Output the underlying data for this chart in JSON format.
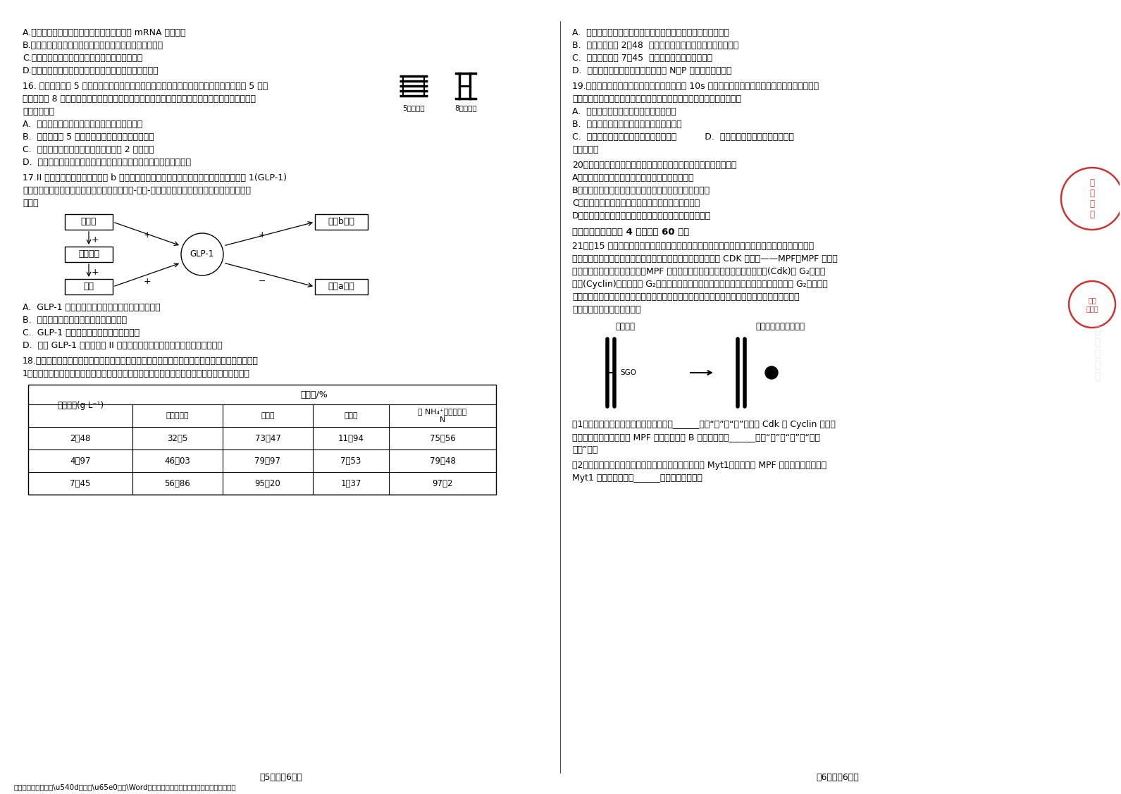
{
  "background_color": "#ffffff",
  "left_top_lines": [
    "A.细胞分化，遗传物质没有发生改变，合成的 mRNA 存在差异",
    "B.细胞癌变，细胞膜上糖蛋白减少，癌细胞在组织间易转移",
    "C.细胞衰老，细胞核体积增大，核膜不断向外折叠",
    "D.细胞凋亡，相关基因活动加强，有利于个体的生长发育"
  ],
  "q16_lines": [
    "16. 猫叫综合征是 5 号染色体部分断裂缺失所致。现有某表现型正常的女性个体，其断裂的 5 号染",
    "色体片段与 8 号染色体连接。在减数分裂过程中两对染色体发生如图所示的现象。据图分析，相关",
    "叙述错误的是"
  ],
  "q16_opts": [
    "A.  该个体的变异类型一般不会导致基因数量减少",
    "B.  观察异常的 5 号染色体可选择有丝分裂中期细胞",
    "C.  若不考虑交叉互换，该个体可能产生 2 种卵细胞",
    "D.  若该个体与正常男性婚配，娠娠期间应尽早对胎儿进行染色体筛查"
  ],
  "q17_lines": [
    "17.II 型糖尿病的发病原因是胰岛 b 细胞功能缺陋或者胰岛素抗抗。研究发现胰升糖素样肽 1(GLP-1)",
    "不仅可以作用于胰岛，还可以直接作用于下丘脑-垂体-性腺轴，如下图所示。下列叙述或推测不正",
    "确的是"
  ],
  "q17_opts": [
    "A.  GLP-1 与胰高血糖素在血糖调节过程中相互拮抗",
    "B.  性激素对下丘脑和垂体前叶起抑制作用",
    "C.  GLP-1 受体仅分布于下丘脑和垂体前叶",
    "D.  增加 GLP-1 受体活性对 II 型糖尿病及性腺系统疾病均可能有一定的疗效"
  ],
  "q18_lines": [
    "18.科研人员利用蚁葰生态滤池，研究在同样条件下不同蚁葰密度对畜禽废水的处理效果，结果如表",
    "1（化学需氧量：水体有机物含量指标，有机物含量高，化学需氧量高）。下列相关说法错误的是"
  ],
  "table_data": [
    [
      "2．48",
      "32．5",
      "73．47",
      "11．94",
      "75．56"
    ],
    [
      "4．97",
      "46．03",
      "79．97",
      "7．53",
      "79．48"
    ],
    [
      "7．45",
      "56．86",
      "95．20",
      "1．37",
      "97．2"
    ]
  ],
  "right_q18_opts": [
    "A.  蚁葰在生态系统中属于分解者，可分解有机物、促进物质循环",
    "B.  当蚁葰密度为 2．48  时，废水适合用作异养生物的生态养殖",
    "C.  当蚁葰密度为 7．45  时，废水总体去污能力最强",
    "D.  随着蚁葰密度的增加，对废水中的 N、P 的去除效果都增强"
  ],
  "q19_lines": [
    "19.杜鹃鸟不会嬵卵，在繁殖期，雌杜鹃能够在 10s 内将自己的卵产入苍头燕雀等的巢内、并衍走其",
    "一至多个卵，杜鹃鸟的卵则由苍头燕雀嬵化并喜养，以下说法不正确的是"
  ],
  "q19_opts_ab": [
    "A.  雄杜鹃鸟衍走卵更有利于自身卵的嬵化",
    "B.  分析可知杜鹃鸟与苍头燕雀间呈共生关系"
  ],
  "q19_cd": "C.  杜鹃鸟与苍头燕雀相互选择，共同进化          D.  杜鹃鸟幼鸟与苍头燕雀幼鸟的食",
  "q19_d2": "物种类相同",
  "q20_line": "20．下列关于植物体细胞杂交和植物组织培养技术的叙述，正确的是",
  "q20_opts": [
    "A．植物组织培养过程需在无菌且无光的条件下进行",
    "B．植物体细胞杂交过程能体现出细胞膜具有流动性的特点",
    "C．杂种细胞的细胞核融合完成是细胞融合完成的标志",
    "D．植物体的叶肉细胞能在一定条件下经脱分化形成胚状体"
  ],
  "q21_section": "二．非选题：本题共 4 小题，共 60 分。",
  "q21_lines": [
    "21．（15 分）在研究细胞增殖的过程中，许多科研团队发现在细胞周期的不同时期都存在着多种调",
    "控因子。科研工作者首先在非洲爪蟾的卵中发现了细胞周期蛋白 CDK 复合物——MPF。MPF 又被称",
    "为分裂期促进因子，在结构上，MPF 是一种复合物，由周期蛋白依赖性蛋白激酯(Cdk)和 G₂期周期",
    "蛋白(Cyclin)组成。其中 G₂期周期蛋白为调节亚基，能够促使染色体凝集，促使细胞由 G₂期进入分",
    "裂期。另一研究团队发现，细胞中染色体的正确排列、分离与染色单体之间的粘连蛋白有关，粘连",
    "蛋白的作用机理如下图所示。"
  ],
  "q21_sub1_lines": [
    "（1）根据上述信息推测，口腔上皮细胞内______（填“有”或“无”）控制 Cdk 和 Cyclin 合成的",
    "相应基因；造血干细胞中 MPF 的含量比胰岛 B 细胞中其含量______（填“高”或“低”或“基本",
    "相等”）。"
  ],
  "q21_sub2_lines": [
    "（2）在研究过程中，科研工作者还发现了另一种蛋白质 Myt1，它能抑制 MPF 的激活，据此推测，",
    "Myt1 是在细胞周期的______期发挥其效应的。"
  ],
  "page_left": "第5页（兲6页）",
  "page_right": "第6页（兲6页）",
  "footer": "全国各地最新模拟卷\\u540d校试卷\\u65e0水印\\Word可编辑试卷等请关注微信公众号：高中借试卷"
}
